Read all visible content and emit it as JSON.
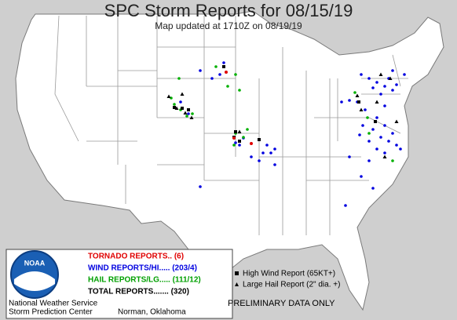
{
  "header": {
    "title": "SPC Storm Reports for 08/15/19",
    "subtitle": "Map updated at 1710Z on 08/19/19"
  },
  "legend": {
    "tornado": "TORNADO REPORTS.. (6)",
    "wind": "WIND REPORTS/HI..... (203/4)",
    "hail": "HAIL REPORTS/LG..... (111/12)",
    "total": "TOTAL REPORTS....... (320)",
    "logo": "NOAA",
    "office_1": "National Weather Service",
    "office_2": "Storm Prediction Center",
    "city": "Norman, Oklahoma"
  },
  "key": {
    "high_wind": "High Wind Report (65KT+)",
    "large_hail": "Large Hail Report (2\" dia. +)"
  },
  "footer": "PRELIMINARY DATA ONLY"
}
